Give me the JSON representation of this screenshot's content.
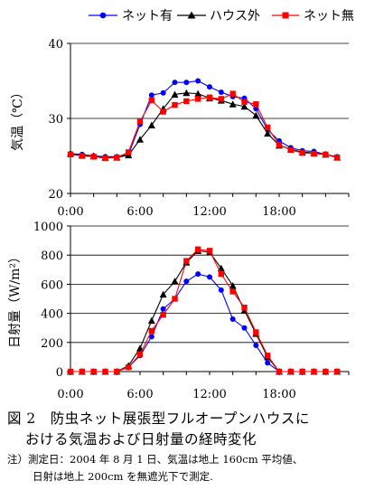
{
  "legend": {
    "net_with": "ネット有",
    "outside": "ハウス外",
    "net_without": "ネット無"
  },
  "colors": {
    "net_with": "#0000ff",
    "outside": "#000000",
    "net_without": "#ff0000"
  },
  "caption": {
    "fig_num": "図 2",
    "title_line1": "防虫ネット展張型フルオープンハウスに",
    "title_line2": "おける気温および日射量の経時変化",
    "note_line1": "注）測定日：2004 年 8 月 1 日、気温は地上 160cm 平均値、",
    "note_line2": "日射は地上 200cm を無遮光下で測定."
  },
  "chart_data": [
    {
      "type": "line",
      "ylabel": "気温（℃）",
      "ylim": [
        20,
        40
      ],
      "yticks": [
        "20",
        "30",
        "40"
      ],
      "xlim": [
        0,
        24
      ],
      "xticks": [
        "0:00",
        "6:00",
        "12:00",
        "18:00"
      ],
      "legend_position": "top",
      "x": [
        0,
        1,
        2,
        3,
        4,
        5,
        6,
        7,
        8,
        9,
        10,
        11,
        12,
        13,
        14,
        15,
        16,
        17,
        18,
        19,
        20,
        21,
        22,
        23
      ],
      "series": [
        {
          "name": "ネット有",
          "key": "net_with",
          "marker": "circle",
          "values": [
            25.3,
            25.2,
            25.0,
            24.9,
            24.9,
            25.2,
            29.2,
            33.1,
            33.4,
            34.8,
            34.8,
            35.0,
            34.2,
            33.5,
            32.9,
            32.7,
            31.3,
            28.5,
            27.0,
            26.1,
            25.7,
            25.6,
            25.2,
            24.9
          ]
        },
        {
          "name": "ハウス外",
          "key": "outside",
          "marker": "triangle",
          "values": [
            25.3,
            25.1,
            25.0,
            24.8,
            24.8,
            25.1,
            27.2,
            29.1,
            31.3,
            33.2,
            33.4,
            33.3,
            32.7,
            32.4,
            31.9,
            31.6,
            30.4,
            28.0,
            26.4,
            25.9,
            25.5,
            25.4,
            25.2,
            24.8
          ]
        },
        {
          "name": "ネット無",
          "key": "net_without",
          "marker": "square",
          "values": [
            25.2,
            25.0,
            24.9,
            24.7,
            24.8,
            25.5,
            29.6,
            32.4,
            30.9,
            31.8,
            32.3,
            32.6,
            32.8,
            32.6,
            33.3,
            32.2,
            31.9,
            28.8,
            26.5,
            25.8,
            25.4,
            25.3,
            25.2,
            24.8
          ]
        }
      ]
    },
    {
      "type": "line",
      "ylabel": "日射量（W/m²）",
      "ylim": [
        0,
        1000
      ],
      "yticks": [
        "0",
        "200",
        "400",
        "600",
        "800",
        "1000"
      ],
      "xlim": [
        0,
        24
      ],
      "xticks": [
        "0:00",
        "6:00",
        "12:00",
        "18:00"
      ],
      "x": [
        0,
        1,
        2,
        3,
        4,
        5,
        6,
        7,
        8,
        9,
        10,
        11,
        12,
        13,
        14,
        15,
        16,
        17,
        18,
        19,
        20,
        21,
        22,
        23
      ],
      "series": [
        {
          "name": "ネット有",
          "key": "net_with",
          "marker": "circle",
          "values": [
            0,
            0,
            0,
            0,
            0,
            30,
            110,
            240,
            430,
            500,
            620,
            670,
            650,
            560,
            360,
            300,
            180,
            60,
            0,
            0,
            0,
            0,
            0,
            0
          ]
        },
        {
          "name": "ハウス外",
          "key": "outside",
          "marker": "triangle",
          "values": [
            0,
            0,
            0,
            0,
            0,
            40,
            160,
            350,
            530,
            620,
            750,
            830,
            820,
            710,
            590,
            420,
            260,
            100,
            0,
            0,
            0,
            0,
            0,
            0
          ]
        },
        {
          "name": "ネット無",
          "key": "net_without",
          "marker": "square",
          "values": [
            0,
            0,
            0,
            0,
            0,
            30,
            120,
            280,
            390,
            500,
            760,
            840,
            830,
            670,
            550,
            440,
            270,
            110,
            0,
            0,
            0,
            0,
            0,
            0
          ]
        }
      ]
    }
  ]
}
